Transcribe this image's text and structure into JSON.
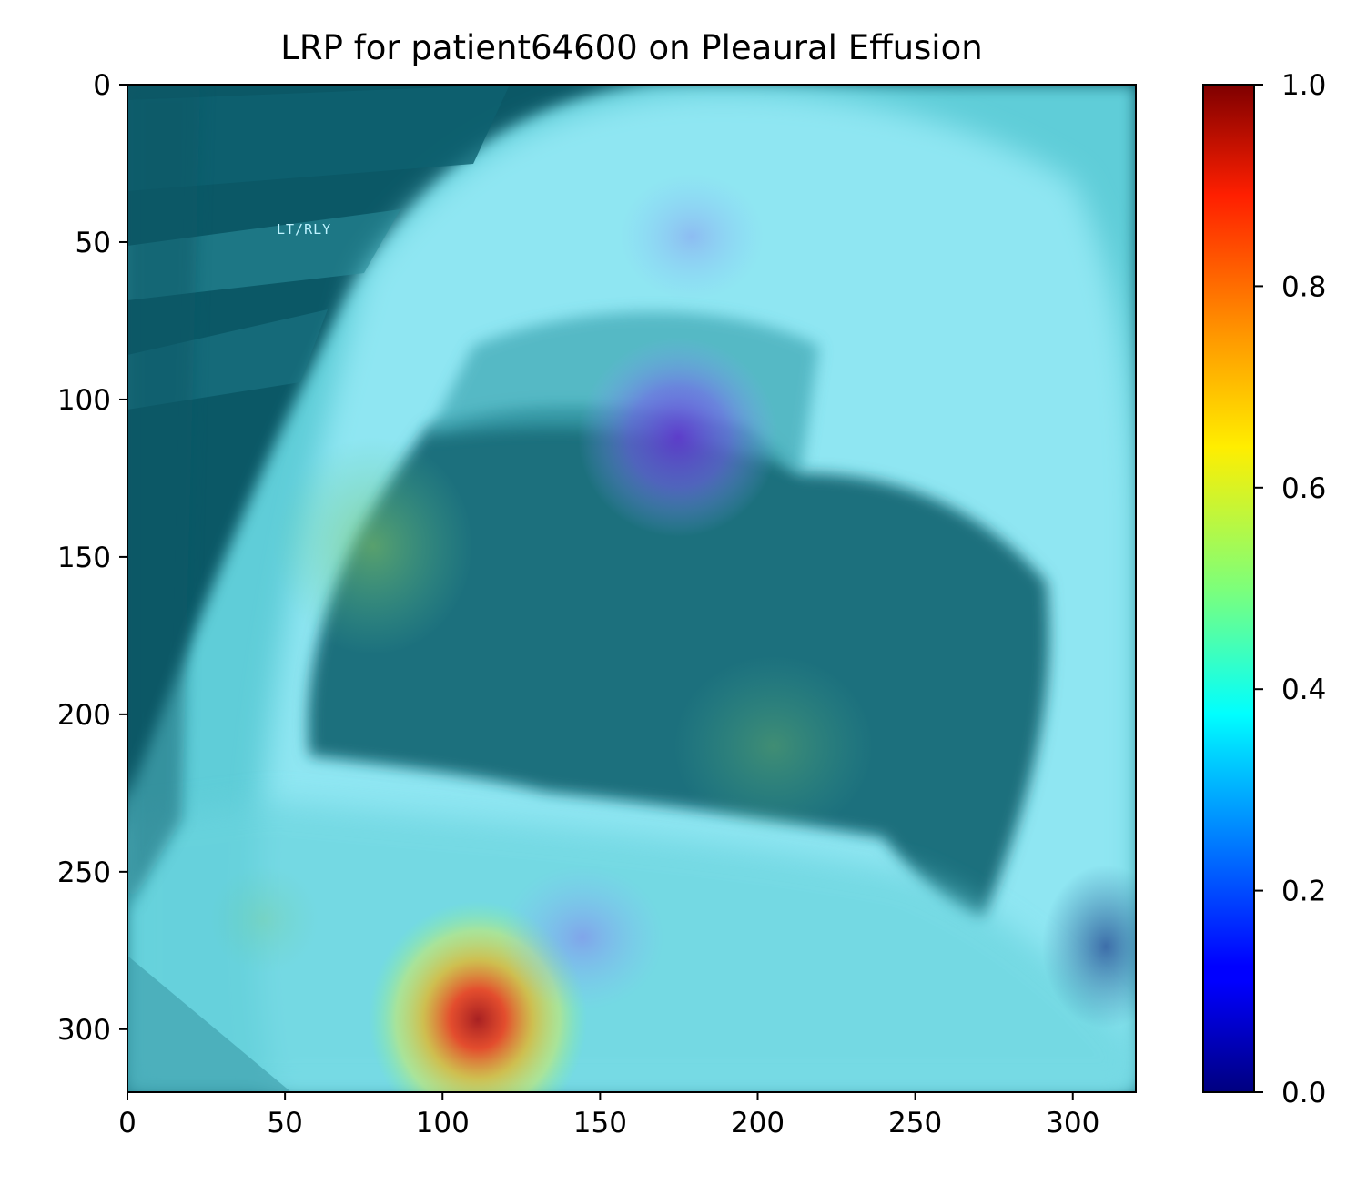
{
  "chart_data": {
    "type": "heatmap",
    "title": "LRP for patient64600 on Pleaural Effusion",
    "xlabel": "",
    "ylabel": "",
    "image_size": [
      320,
      320
    ],
    "xlim": [
      0,
      320
    ],
    "ylim": [
      320,
      0
    ],
    "x_ticks": [
      0,
      50,
      100,
      150,
      200,
      250,
      300
    ],
    "y_ticks": [
      0,
      50,
      100,
      150,
      200,
      250,
      300
    ],
    "colorbar": {
      "colormap": "jet",
      "range": [
        0,
        1
      ],
      "ticks": [
        "0.0",
        "0.2",
        "0.4",
        "0.6",
        "0.8",
        "1.0"
      ],
      "tick_values": [
        0,
        0.2,
        0.4,
        0.6,
        0.8,
        1.0
      ]
    },
    "overlay_text": "LT/RLY",
    "relevance_hotspots": [
      {
        "x": 111,
        "y": 310,
        "relevance": 0.9
      },
      {
        "x": 175,
        "y": 112,
        "relevance": 0.15
      },
      {
        "x": 87,
        "y": 145,
        "relevance": 0.55
      },
      {
        "x": 145,
        "y": 272,
        "relevance": 0.2
      },
      {
        "x": 205,
        "y": 210,
        "relevance": 0.45
      },
      {
        "x": 178,
        "y": 50,
        "relevance": 0.25
      },
      {
        "x": 310,
        "y": 275,
        "relevance": 0.1
      }
    ]
  },
  "colors": {
    "background_tint": "#58c6d2",
    "dark_region": "#0b5866",
    "lung_region": "#1a6f7d",
    "bright_region": "#9beef8"
  }
}
